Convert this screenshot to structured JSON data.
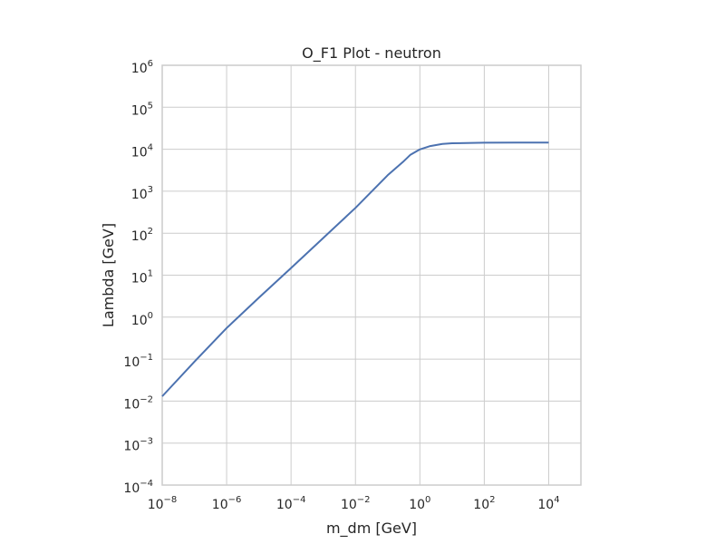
{
  "chart_data": {
    "type": "line",
    "title": "O_F1 Plot - neutron",
    "xlabel": "m_dm [GeV]",
    "ylabel": "Lambda [GeV]",
    "xscale": "log",
    "yscale": "log",
    "xlim": [
      1e-08,
      100000.0
    ],
    "ylim": [
      0.0001,
      1000000.0
    ],
    "grid": true,
    "x_ticks": [
      {
        "base": "10",
        "exp": "−8"
      },
      {
        "base": "10",
        "exp": "−6"
      },
      {
        "base": "10",
        "exp": "−4"
      },
      {
        "base": "10",
        "exp": "−2"
      },
      {
        "base": "10",
        "exp": "0"
      },
      {
        "base": "10",
        "exp": "2"
      },
      {
        "base": "10",
        "exp": "4"
      }
    ],
    "y_ticks": [
      {
        "base": "10",
        "exp": "−4"
      },
      {
        "base": "10",
        "exp": "−3"
      },
      {
        "base": "10",
        "exp": "−2"
      },
      {
        "base": "10",
        "exp": "−1"
      },
      {
        "base": "10",
        "exp": "0"
      },
      {
        "base": "10",
        "exp": "1"
      },
      {
        "base": "10",
        "exp": "2"
      },
      {
        "base": "10",
        "exp": "3"
      },
      {
        "base": "10",
        "exp": "4"
      },
      {
        "base": "10",
        "exp": "5"
      },
      {
        "base": "10",
        "exp": "6"
      }
    ],
    "series": [
      {
        "color": "#4c72b0",
        "x": [
          1e-08,
          1e-07,
          1e-06,
          1e-05,
          0.0001,
          0.001,
          0.01,
          0.1,
          0.3,
          0.5,
          1,
          2,
          5,
          10,
          100,
          1000,
          10000
        ],
        "y": [
          0.013,
          0.087,
          0.55,
          2.9,
          14.8,
          77,
          400,
          2400,
          5000,
          7300,
          9900,
          11800,
          13400,
          13900,
          14300,
          14400,
          14400
        ]
      }
    ]
  }
}
